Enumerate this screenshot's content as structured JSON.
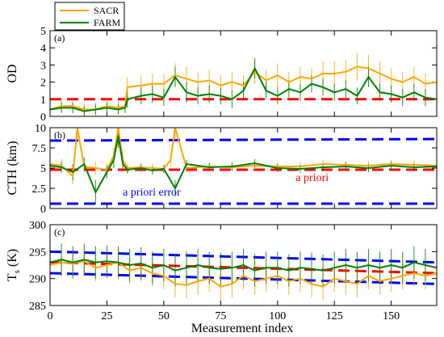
{
  "chart_data": {
    "type": "line",
    "xlabel": "Measurement index",
    "xlim": [
      0,
      170
    ],
    "xticks": [
      0,
      25,
      50,
      75,
      100,
      125,
      150
    ],
    "legend": {
      "placement": "top-left",
      "entries": [
        {
          "name": "SACR",
          "color": "#FFA500"
        },
        {
          "name": "FARM",
          "color": "#008000"
        }
      ]
    },
    "panels": [
      {
        "tag": "(a)",
        "ylabel": "OD",
        "ylim": [
          0,
          5
        ],
        "yticks": [
          0,
          1,
          2,
          3,
          4,
          5
        ],
        "reference_lines": [
          {
            "name": "a priori",
            "color": "#FF0000",
            "points": [
              [
                0,
                1
              ],
              [
                170,
                1
              ]
            ]
          }
        ],
        "series": [
          {
            "name": "SACR",
            "color": "#FFA500",
            "x": [
              0,
              5,
              10,
              15,
              20,
              25,
              30,
              33,
              34,
              40,
              45,
              50,
              55,
              60,
              65,
              70,
              75,
              80,
              85,
              90,
              95,
              100,
              105,
              110,
              115,
              120,
              125,
              130,
              135,
              140,
              145,
              150,
              155,
              160,
              165,
              170
            ],
            "y": [
              0.4,
              0.6,
              0.6,
              0.4,
              0.4,
              0.6,
              0.5,
              0.6,
              1.7,
              1.8,
              1.9,
              1.9,
              2.4,
              2.2,
              2.0,
              2.1,
              1.8,
              2.0,
              1.8,
              2.6,
              2.1,
              2.4,
              2.0,
              2.3,
              2.2,
              2.5,
              2.5,
              2.6,
              2.9,
              2.8,
              2.5,
              2.2,
              2.0,
              2.3,
              1.9,
              2.0
            ],
            "error": [
              0.4,
              0.4,
              0.4,
              0.4,
              0.4,
              0.4,
              0.4,
              0.4,
              0.6,
              0.6,
              0.6,
              0.6,
              0.7,
              0.7,
              0.6,
              0.6,
              0.6,
              0.6,
              0.6,
              0.7,
              0.6,
              0.7,
              0.6,
              0.6,
              0.6,
              0.7,
              0.7,
              0.7,
              0.8,
              0.8,
              0.7,
              0.6,
              0.6,
              0.6,
              0.6,
              0.6
            ]
          },
          {
            "name": "FARM",
            "color": "#008000",
            "x": [
              0,
              5,
              10,
              15,
              20,
              25,
              30,
              33,
              34,
              40,
              45,
              50,
              55,
              60,
              65,
              70,
              75,
              80,
              85,
              90,
              95,
              100,
              105,
              110,
              115,
              120,
              125,
              130,
              135,
              140,
              145,
              150,
              155,
              160,
              165,
              170
            ],
            "y": [
              0.4,
              0.5,
              0.5,
              0.3,
              0.4,
              0.5,
              0.4,
              0.5,
              1.0,
              1.2,
              1.3,
              1.1,
              2.3,
              1.4,
              1.2,
              1.3,
              1.2,
              1.0,
              1.5,
              2.8,
              1.5,
              1.2,
              1.6,
              1.4,
              1.9,
              1.7,
              1.4,
              1.6,
              1.2,
              2.3,
              1.4,
              1.3,
              1.1,
              1.4,
              1.1,
              1.0
            ],
            "error": [
              0.3,
              0.3,
              0.3,
              0.3,
              0.3,
              0.3,
              0.3,
              0.3,
              0.5,
              0.5,
              0.5,
              0.5,
              0.6,
              0.6,
              0.5,
              0.5,
              0.5,
              0.5,
              0.5,
              0.6,
              0.5,
              0.5,
              0.5,
              0.5,
              0.5,
              0.5,
              0.5,
              0.5,
              0.5,
              0.6,
              0.5,
              0.5,
              0.5,
              0.5,
              0.5,
              0.5
            ]
          }
        ]
      },
      {
        "tag": "(b)",
        "ylabel": "CTH (km)",
        "ylim": [
          0,
          10
        ],
        "yticks": [
          0,
          2.5,
          5,
          7.5,
          10
        ],
        "ytick_labels": [
          "0",
          "2.5",
          "5",
          "7.5",
          "10"
        ],
        "reference_lines": [
          {
            "name": "a priori",
            "color": "#FF0000",
            "points": [
              [
                0,
                4.8
              ],
              [
                170,
                4.8
              ]
            ]
          },
          {
            "name": "a priori error",
            "color": "#0000FF",
            "points": [
              [
                0,
                8.4
              ],
              [
                170,
                8.6
              ]
            ]
          },
          {
            "name": "a priori error",
            "color": "#0000FF",
            "points": [
              [
                0,
                0.6
              ],
              [
                170,
                0.6
              ]
            ]
          }
        ],
        "annotations": [
          {
            "text": "a priori",
            "x": 108,
            "y": 3.4,
            "color": "#FF0000"
          },
          {
            "text": "a priori error",
            "x": 32,
            "y": 1.6,
            "color": "#0000FF"
          }
        ],
        "series": [
          {
            "name": "SACR",
            "color": "#FFA500",
            "x": [
              0,
              5,
              10,
              12,
              15,
              20,
              25,
              28,
              30,
              32,
              34,
              40,
              45,
              50,
              53,
              55,
              60,
              70,
              80,
              90,
              100,
              110,
              120,
              130,
              140,
              150,
              160,
              170
            ],
            "y": [
              5.5,
              5.3,
              4.0,
              10.0,
              5.2,
              5.0,
              4.8,
              6.5,
              10.0,
              6.0,
              5.0,
              5.1,
              5.0,
              4.9,
              6.0,
              10.0,
              5.0,
              5.2,
              5.1,
              5.3,
              5.2,
              5.2,
              5.5,
              5.4,
              5.3,
              5.5,
              5.4,
              5.3
            ],
            "error": [
              0.8,
              0.8,
              1.0,
              1.5,
              0.8,
              0.8,
              0.8,
              1.0,
              1.5,
              1.0,
              0.5,
              0.5,
              0.5,
              0.5,
              0.8,
              1.5,
              0.5,
              0.5,
              0.5,
              0.5,
              0.5,
              0.5,
              0.5,
              0.5,
              0.5,
              0.5,
              0.5,
              0.5
            ]
          },
          {
            "name": "FARM",
            "color": "#008000",
            "x": [
              0,
              5,
              10,
              15,
              20,
              25,
              28,
              30,
              32,
              34,
              40,
              45,
              50,
              55,
              60,
              70,
              80,
              90,
              100,
              110,
              120,
              130,
              140,
              150,
              160,
              170
            ],
            "y": [
              5.3,
              5.1,
              4.5,
              5.5,
              2.0,
              4.5,
              6.0,
              9.0,
              5.5,
              4.8,
              5.0,
              4.7,
              4.9,
              2.5,
              5.5,
              5.1,
              5.2,
              5.6,
              5.0,
              4.9,
              5.1,
              5.2,
              5.0,
              5.3,
              5.1,
              5.2
            ],
            "error": [
              0.7,
              0.7,
              1.0,
              0.8,
              1.5,
              0.8,
              1.0,
              1.5,
              0.8,
              0.5,
              0.5,
              0.5,
              0.5,
              1.0,
              0.5,
              0.5,
              0.5,
              0.5,
              0.5,
              0.5,
              0.5,
              0.5,
              0.5,
              0.5,
              0.5,
              0.5
            ]
          }
        ]
      },
      {
        "tag": "(c)",
        "ylabel": "T_s (K)",
        "ylabel_main": "T",
        "ylabel_sub": "s",
        "ylabel_unit": " (K)",
        "ylim": [
          285,
          300
        ],
        "yticks": [
          285,
          290,
          295,
          300
        ],
        "reference_lines": [
          {
            "name": "a priori",
            "color": "#FF0000",
            "points": [
              [
                0,
                293.0
              ],
              [
                170,
                291.0
              ]
            ]
          },
          {
            "name": "a priori error",
            "color": "#0000FF",
            "points": [
              [
                0,
                295.0
              ],
              [
                170,
                293.0
              ]
            ]
          },
          {
            "name": "a priori error",
            "color": "#0000FF",
            "points": [
              [
                0,
                291.0
              ],
              [
                170,
                289.0
              ]
            ]
          }
        ],
        "series": [
          {
            "name": "SACR",
            "color": "#FFA500",
            "x": [
              0,
              5,
              10,
              15,
              20,
              25,
              30,
              35,
              40,
              45,
              50,
              55,
              60,
              65,
              70,
              75,
              80,
              85,
              90,
              95,
              100,
              105,
              110,
              115,
              120,
              125,
              130,
              135,
              140,
              145,
              150,
              155,
              160,
              165,
              170
            ],
            "y": [
              292.5,
              293.0,
              292.8,
              293.2,
              292.0,
              292.5,
              293.0,
              291.5,
              292.0,
              291.0,
              290.5,
              289.0,
              288.8,
              289.5,
              290.0,
              288.5,
              289.0,
              290.5,
              289.5,
              290.0,
              290.5,
              289.5,
              290.0,
              289.0,
              288.5,
              290.0,
              289.5,
              289.0,
              290.5,
              289.5,
              290.0,
              290.5,
              291.0,
              290.5,
              291.0
            ],
            "error": [
              2.5,
              2.5,
              2.5,
              2.5,
              2.5,
              2.5,
              2.5,
              2.5,
              2.5,
              2.5,
              2.5,
              2.5,
              2.5,
              2.5,
              2.5,
              2.5,
              2.5,
              2.5,
              2.5,
              2.5,
              2.5,
              2.5,
              2.5,
              2.5,
              2.5,
              2.5,
              2.5,
              2.5,
              2.5,
              2.5,
              2.5,
              2.5,
              2.5,
              2.5,
              2.5
            ]
          },
          {
            "name": "FARM",
            "color": "#008000",
            "x": [
              0,
              5,
              10,
              15,
              20,
              25,
              30,
              35,
              40,
              45,
              50,
              55,
              60,
              65,
              70,
              75,
              80,
              85,
              90,
              95,
              100,
              105,
              110,
              115,
              120,
              125,
              130,
              135,
              140,
              145,
              150,
              155,
              160,
              165,
              170
            ],
            "y": [
              293.0,
              293.5,
              293.0,
              293.5,
              293.0,
              293.2,
              293.0,
              292.5,
              292.8,
              292.0,
              292.5,
              291.5,
              292.0,
              292.5,
              292.0,
              291.8,
              292.0,
              292.5,
              291.5,
              292.0,
              292.0,
              291.5,
              292.0,
              291.8,
              291.5,
              292.0,
              292.5,
              292.0,
              292.5,
              292.0,
              292.5,
              292.0,
              293.0,
              292.5,
              292.0
            ],
            "error": [
              3.0,
              3.0,
              3.0,
              3.0,
              3.0,
              3.0,
              3.0,
              3.0,
              3.0,
              3.0,
              3.0,
              3.0,
              3.0,
              3.0,
              3.0,
              3.0,
              3.0,
              3.0,
              3.0,
              3.0,
              3.0,
              3.0,
              3.0,
              3.0,
              3.0,
              3.0,
              3.0,
              3.0,
              3.0,
              3.0,
              3.0,
              3.0,
              3.0,
              3.0,
              3.0
            ]
          }
        ]
      }
    ]
  }
}
